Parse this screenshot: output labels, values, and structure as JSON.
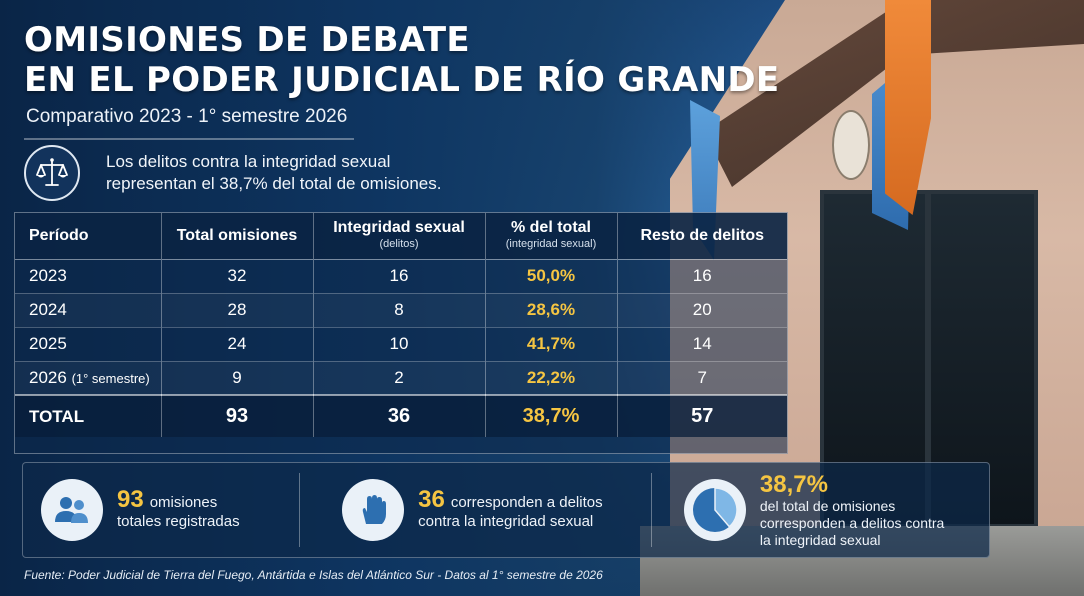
{
  "header": {
    "title_line1": "OMISIONES DE DEBATE",
    "title_line2": "EN EL PODER JUDICIAL DE RÍO GRANDE",
    "subtitle": "Comparativo 2023 - 1° semestre 2026"
  },
  "highlight": {
    "icon": "scales-of-justice-icon",
    "line1": "Los delitos contra la integridad sexual",
    "line2": "representan el 38,7% del total de omisiones."
  },
  "table": {
    "headers": {
      "period": "Período",
      "total": "Total omisiones",
      "sexual": "Integridad sexual",
      "sexual_sub": "(delitos)",
      "pct": "% del total",
      "pct_sub": "(integridad sexual)",
      "rest": "Resto de delitos"
    },
    "rows": [
      {
        "period": "2023",
        "period_note": "",
        "total": "32",
        "sexual": "16",
        "pct": "50,0%",
        "rest": "16"
      },
      {
        "period": "2024",
        "period_note": "",
        "total": "28",
        "sexual": "8",
        "pct": "28,6%",
        "rest": "20"
      },
      {
        "period": "2025",
        "period_note": "",
        "total": "24",
        "sexual": "10",
        "pct": "41,7%",
        "rest": "14"
      },
      {
        "period": "2026",
        "period_note": "(1° semestre)",
        "total": "9",
        "sexual": "2",
        "pct": "22,2%",
        "rest": "7"
      }
    ],
    "total": {
      "label": "TOTAL",
      "total": "93",
      "sexual": "36",
      "pct": "38,7%",
      "rest": "57"
    }
  },
  "stats": {
    "s1": {
      "icon": "people-icon",
      "number": "93",
      "text_a": "omisiones",
      "text_b": "totales registradas"
    },
    "s2": {
      "icon": "raised-hand-icon",
      "number": "36",
      "text_a": "corresponden a delitos",
      "text_b": "contra la integridad sexual"
    },
    "s3": {
      "icon": "pie-chart-icon",
      "number": "38,7%",
      "text_a": "del total de omisiones",
      "text_b": "corresponden a delitos contra",
      "text_c": "la integridad sexual",
      "share": 0.387
    }
  },
  "source": "Fuente: Poder Judicial de Tierra del Fuego, Antártida e Islas del Atlántico Sur - Datos al 1° semestre de 2026",
  "colors": {
    "accent": "#f5c542",
    "navy": "#0b2a4e",
    "icon_blue": "#2d6fb0"
  }
}
